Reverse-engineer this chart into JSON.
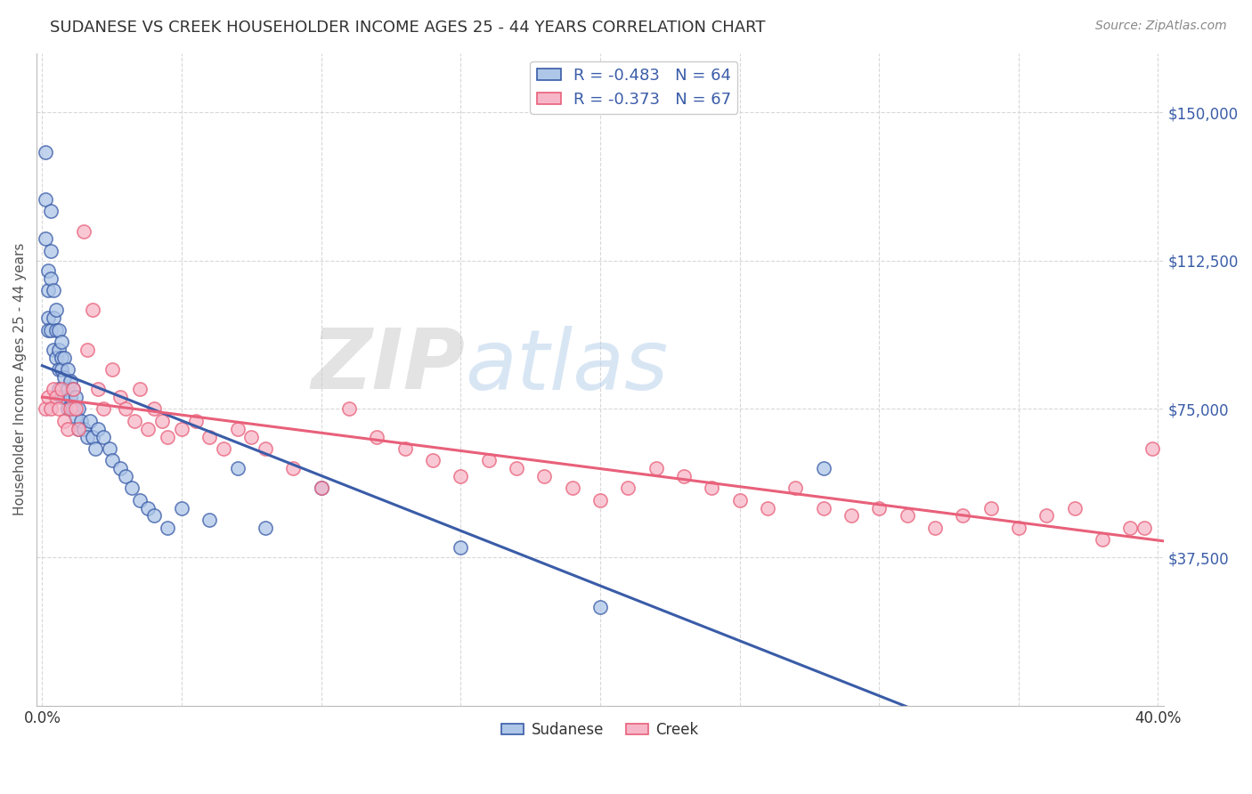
{
  "title": "SUDANESE VS CREEK HOUSEHOLDER INCOME AGES 25 - 44 YEARS CORRELATION CHART",
  "source": "Source: ZipAtlas.com",
  "ylabel": "Householder Income Ages 25 - 44 years",
  "xlim": [
    -0.002,
    0.402
  ],
  "ylim": [
    0,
    165000
  ],
  "xticks": [
    0.0,
    0.05,
    0.1,
    0.15,
    0.2,
    0.25,
    0.3,
    0.35,
    0.4
  ],
  "xticklabels": [
    "0.0%",
    "",
    "",
    "",
    "",
    "",
    "",
    "",
    "40.0%"
  ],
  "right_yticks": [
    37500,
    75000,
    112500,
    150000
  ],
  "right_yticklabels": [
    "$37,500",
    "$75,000",
    "$112,500",
    "$150,000"
  ],
  "sudanese_color": "#aec6e8",
  "creek_color": "#f7b6c8",
  "sudanese_line_color": "#3a5ca8",
  "creek_line_color": "#e8607a",
  "sudanese_R": -0.483,
  "sudanese_N": 64,
  "creek_R": -0.373,
  "creek_N": 67,
  "watermark_zip": "ZIP",
  "watermark_atlas": "atlas",
  "background_color": "#ffffff",
  "grid_color": "#d8d8d8",
  "sud_x": [
    0.001,
    0.001,
    0.001,
    0.002,
    0.002,
    0.002,
    0.002,
    0.003,
    0.003,
    0.003,
    0.003,
    0.004,
    0.004,
    0.004,
    0.005,
    0.005,
    0.005,
    0.006,
    0.006,
    0.006,
    0.006,
    0.007,
    0.007,
    0.007,
    0.007,
    0.008,
    0.008,
    0.008,
    0.009,
    0.009,
    0.009,
    0.01,
    0.01,
    0.011,
    0.011,
    0.012,
    0.012,
    0.013,
    0.013,
    0.014,
    0.015,
    0.016,
    0.017,
    0.018,
    0.019,
    0.02,
    0.022,
    0.024,
    0.025,
    0.028,
    0.03,
    0.032,
    0.035,
    0.038,
    0.04,
    0.045,
    0.05,
    0.06,
    0.07,
    0.08,
    0.1,
    0.15,
    0.2,
    0.28
  ],
  "sud_y": [
    140000,
    128000,
    118000,
    110000,
    105000,
    98000,
    95000,
    125000,
    115000,
    108000,
    95000,
    105000,
    98000,
    90000,
    100000,
    95000,
    88000,
    95000,
    90000,
    85000,
    80000,
    92000,
    88000,
    85000,
    78000,
    88000,
    83000,
    78000,
    85000,
    80000,
    75000,
    82000,
    78000,
    80000,
    75000,
    78000,
    73000,
    75000,
    70000,
    72000,
    70000,
    68000,
    72000,
    68000,
    65000,
    70000,
    68000,
    65000,
    62000,
    60000,
    58000,
    55000,
    52000,
    50000,
    48000,
    45000,
    50000,
    47000,
    60000,
    45000,
    55000,
    40000,
    25000,
    60000
  ],
  "creek_x": [
    0.001,
    0.002,
    0.003,
    0.004,
    0.005,
    0.006,
    0.007,
    0.008,
    0.009,
    0.01,
    0.011,
    0.012,
    0.013,
    0.015,
    0.016,
    0.018,
    0.02,
    0.022,
    0.025,
    0.028,
    0.03,
    0.033,
    0.035,
    0.038,
    0.04,
    0.043,
    0.045,
    0.05,
    0.055,
    0.06,
    0.065,
    0.07,
    0.075,
    0.08,
    0.09,
    0.1,
    0.11,
    0.12,
    0.13,
    0.14,
    0.15,
    0.16,
    0.17,
    0.18,
    0.19,
    0.2,
    0.21,
    0.22,
    0.23,
    0.24,
    0.25,
    0.26,
    0.27,
    0.28,
    0.29,
    0.3,
    0.31,
    0.32,
    0.33,
    0.34,
    0.35,
    0.36,
    0.37,
    0.38,
    0.39,
    0.395,
    0.398
  ],
  "creek_y": [
    75000,
    78000,
    75000,
    80000,
    78000,
    75000,
    80000,
    72000,
    70000,
    75000,
    80000,
    75000,
    70000,
    120000,
    90000,
    100000,
    80000,
    75000,
    85000,
    78000,
    75000,
    72000,
    80000,
    70000,
    75000,
    72000,
    68000,
    70000,
    72000,
    68000,
    65000,
    70000,
    68000,
    65000,
    60000,
    55000,
    75000,
    68000,
    65000,
    62000,
    58000,
    62000,
    60000,
    58000,
    55000,
    52000,
    55000,
    60000,
    58000,
    55000,
    52000,
    50000,
    55000,
    50000,
    48000,
    50000,
    48000,
    45000,
    48000,
    50000,
    45000,
    48000,
    50000,
    42000,
    45000,
    45000,
    65000
  ]
}
